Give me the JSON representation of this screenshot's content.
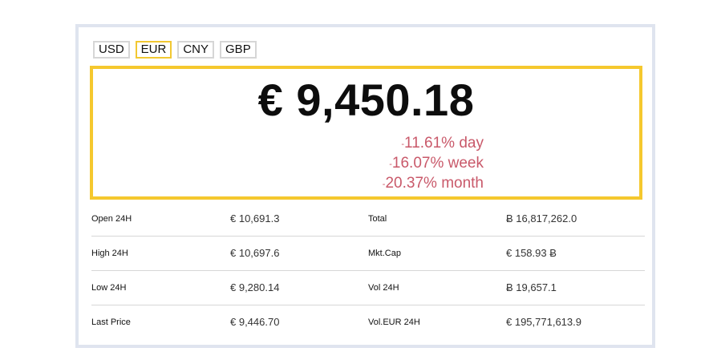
{
  "tabs": [
    "USD",
    "EUR",
    "CNY",
    "GBP"
  ],
  "active_tab": "EUR",
  "price": {
    "value": "€ 9,450.18",
    "changes": [
      {
        "sign": "-",
        "text": "11.61% day"
      },
      {
        "sign": "-",
        "text": "16.07% week"
      },
      {
        "sign": "-",
        "text": "20.37% month"
      }
    ]
  },
  "stats": [
    {
      "label1": "Open 24H",
      "value1": "€ 10,691.3",
      "label2": "Total",
      "value2": "Ƀ 16,817,262.0"
    },
    {
      "label1": "High 24H",
      "value1": "€ 10,697.6",
      "label2": "Mkt.Cap",
      "value2": "€ 158.93 Ƀ"
    },
    {
      "label1": "Low 24H",
      "value1": "€ 9,280.14",
      "label2": "Vol 24H",
      "value2": "Ƀ 19,657.1"
    },
    {
      "label1": "Last Price",
      "value1": "€ 9,446.70",
      "label2": "Vol.EUR 24H",
      "value2": "€ 195,771,613.9"
    }
  ],
  "colors": {
    "accent": "#f5c82e",
    "negative": "#c9596a",
    "frame": "#dfe4ef"
  }
}
